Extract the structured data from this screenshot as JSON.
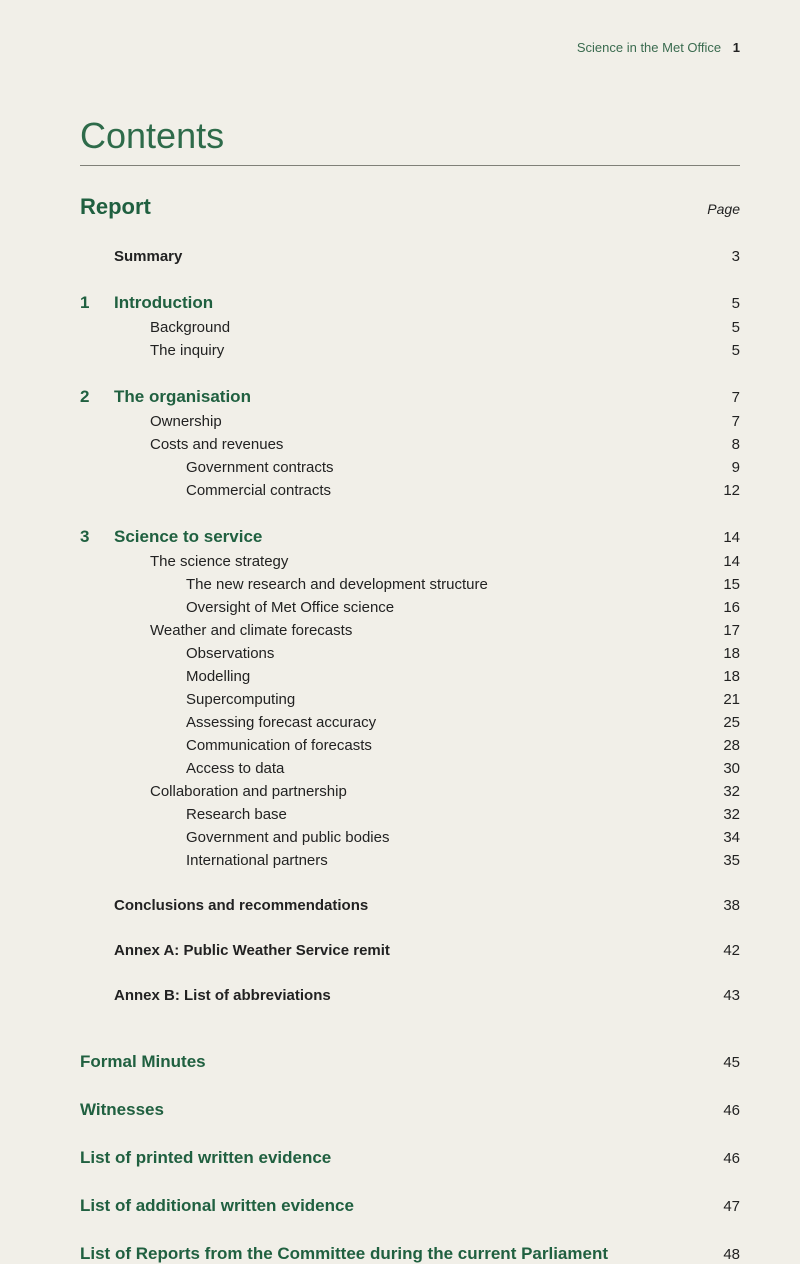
{
  "header": {
    "text": "Science in the Met Office",
    "page": "1"
  },
  "title": "Contents",
  "report": {
    "label": "Report",
    "page_label": "Page"
  },
  "items": [
    {
      "num": "",
      "title": "Summary",
      "page": "3",
      "cls": "section-bold",
      "indent": "sub1",
      "gap_before": "gap-md"
    },
    {
      "num": "1",
      "title": "Introduction",
      "page": "5",
      "cls": "section-bold",
      "indent": "",
      "gap_before": "gap-md"
    },
    {
      "num": "",
      "title": "Background",
      "page": "5",
      "cls": "",
      "indent": "sub2",
      "gap_before": ""
    },
    {
      "num": "",
      "title": "The inquiry",
      "page": "5",
      "cls": "",
      "indent": "sub2",
      "gap_before": ""
    },
    {
      "num": "2",
      "title": "The organisation",
      "page": "7",
      "cls": "section-bold",
      "indent": "",
      "gap_before": "gap-md"
    },
    {
      "num": "",
      "title": "Ownership",
      "page": "7",
      "cls": "",
      "indent": "sub2",
      "gap_before": ""
    },
    {
      "num": "",
      "title": "Costs and revenues",
      "page": "8",
      "cls": "",
      "indent": "sub2",
      "gap_before": ""
    },
    {
      "num": "",
      "title": "Government contracts",
      "page": "9",
      "cls": "",
      "indent": "sub3",
      "gap_before": ""
    },
    {
      "num": "",
      "title": "Commercial contracts",
      "page": "12",
      "cls": "",
      "indent": "sub3",
      "gap_before": ""
    },
    {
      "num": "3",
      "title": "Science to service",
      "page": "14",
      "cls": "section-bold",
      "indent": "",
      "gap_before": "gap-md"
    },
    {
      "num": "",
      "title": "The science strategy",
      "page": "14",
      "cls": "",
      "indent": "sub2",
      "gap_before": ""
    },
    {
      "num": "",
      "title": "The new research and development structure",
      "page": "15",
      "cls": "",
      "indent": "sub3",
      "gap_before": ""
    },
    {
      "num": "",
      "title": "Oversight of Met Office science",
      "page": "16",
      "cls": "",
      "indent": "sub3",
      "gap_before": ""
    },
    {
      "num": "",
      "title": "Weather and climate forecasts",
      "page": "17",
      "cls": "",
      "indent": "sub2",
      "gap_before": ""
    },
    {
      "num": "",
      "title": "Observations",
      "page": "18",
      "cls": "",
      "indent": "sub3",
      "gap_before": ""
    },
    {
      "num": "",
      "title": "Modelling",
      "page": "18",
      "cls": "",
      "indent": "sub3",
      "gap_before": ""
    },
    {
      "num": "",
      "title": "Supercomputing",
      "page": "21",
      "cls": "",
      "indent": "sub3",
      "gap_before": ""
    },
    {
      "num": "",
      "title": "Assessing forecast accuracy",
      "page": "25",
      "cls": "",
      "indent": "sub3",
      "gap_before": ""
    },
    {
      "num": "",
      "title": "Communication of forecasts",
      "page": "28",
      "cls": "",
      "indent": "sub3",
      "gap_before": ""
    },
    {
      "num": "",
      "title": "Access to data",
      "page": "30",
      "cls": "",
      "indent": "sub3",
      "gap_before": ""
    },
    {
      "num": "",
      "title": "Collaboration and partnership",
      "page": "32",
      "cls": "",
      "indent": "sub2",
      "gap_before": ""
    },
    {
      "num": "",
      "title": "Research base",
      "page": "32",
      "cls": "",
      "indent": "sub3",
      "gap_before": ""
    },
    {
      "num": "",
      "title": "Government and public bodies",
      "page": "34",
      "cls": "",
      "indent": "sub3",
      "gap_before": ""
    },
    {
      "num": "",
      "title": "International partners",
      "page": "35",
      "cls": "",
      "indent": "sub3",
      "gap_before": ""
    },
    {
      "num": "",
      "title": "Conclusions and recommendations",
      "page": "38",
      "cls": "section-bold",
      "indent": "sub1",
      "gap_before": "gap-md"
    },
    {
      "num": "",
      "title": "Annex A: Public Weather Service remit",
      "page": "42",
      "cls": "section-bold",
      "indent": "sub1",
      "gap_before": "gap-md"
    },
    {
      "num": "",
      "title": "Annex B: List of abbreviations",
      "page": "43",
      "cls": "section-bold",
      "indent": "sub1",
      "gap_before": "gap-md"
    }
  ],
  "bottom": [
    {
      "title": "Formal Minutes",
      "page": "45",
      "gap_before": "gap-lg"
    },
    {
      "title": "Witnesses",
      "page": "46",
      "gap_before": "gap-md"
    },
    {
      "title": "List of printed written evidence",
      "page": "46",
      "gap_before": "gap-md"
    },
    {
      "title": "List of additional written evidence",
      "page": "47",
      "gap_before": "gap-md"
    },
    {
      "title": "List of Reports from the Committee during the current Parliament",
      "page": "48",
      "gap_before": "gap-md"
    }
  ]
}
